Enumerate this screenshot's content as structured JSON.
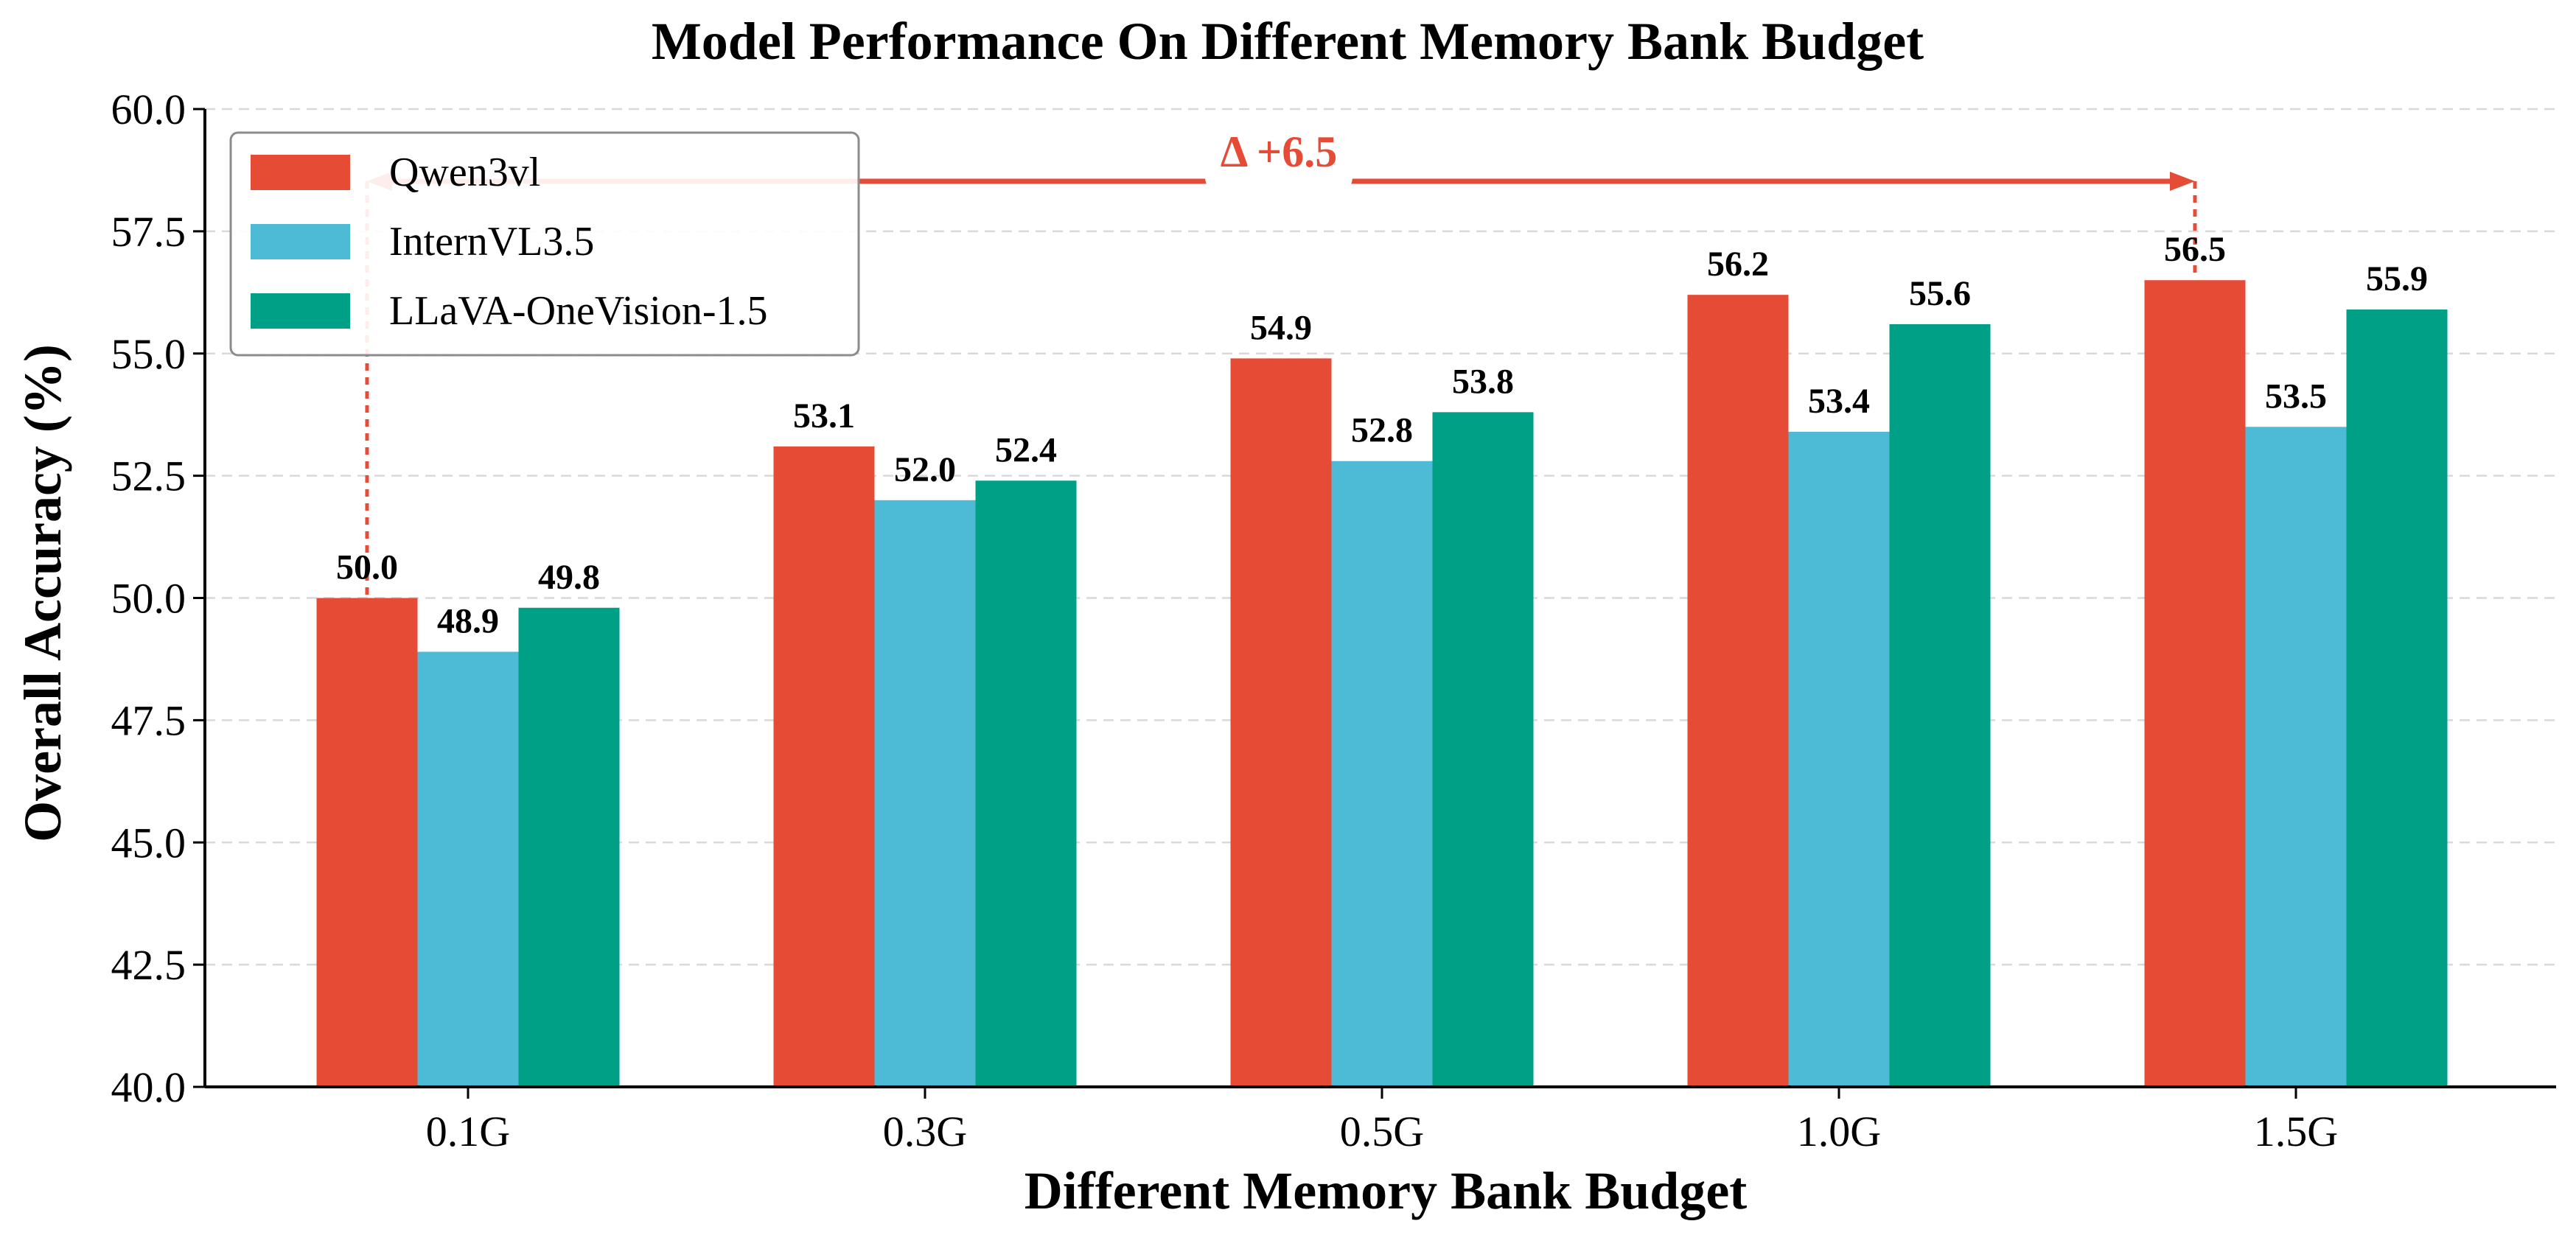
{
  "chart_data": {
    "type": "bar",
    "title": "Model Performance On Different Memory Bank Budget",
    "xlabel": "Different Memory Bank Budget",
    "ylabel": "Overall Accuracy (%)",
    "categories": [
      "0.1G",
      "0.3G",
      "0.5G",
      "1.0G",
      "1.5G"
    ],
    "ylim": [
      40.0,
      60.0
    ],
    "yticks": [
      "40.0",
      "42.5",
      "45.0",
      "47.5",
      "50.0",
      "52.5",
      "55.0",
      "57.5",
      "60.0"
    ],
    "grid": "horizontal dashed",
    "legend_position": "top-left",
    "series": [
      {
        "name": "Qwen3vl",
        "color": "#E64B35",
        "values": [
          50.0,
          53.1,
          54.9,
          56.2,
          56.5
        ]
      },
      {
        "name": "InternVL3.5",
        "color": "#4DBBD5",
        "values": [
          48.9,
          52.0,
          52.8,
          53.4,
          53.5
        ]
      },
      {
        "name": "LLaVA-OneVision-1.5",
        "color": "#00A087",
        "values": [
          49.8,
          52.4,
          53.8,
          55.6,
          55.9
        ]
      }
    ],
    "annotation": {
      "text": "Δ +6.5",
      "color": "#E64B35",
      "from_category": "0.1G",
      "to_category": "1.5G",
      "series": "Qwen3vl"
    }
  }
}
